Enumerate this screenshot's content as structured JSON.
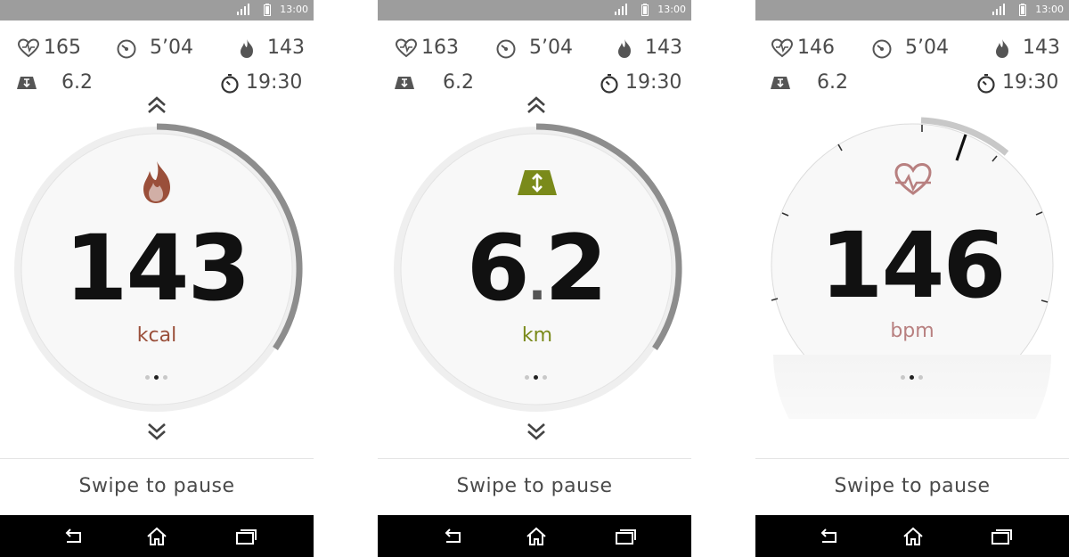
{
  "status_bar": {
    "time": "13:00",
    "signal_icon": "signal-icon",
    "battery_icon": "battery-icon"
  },
  "stat_icons": [
    "heart-rate-icon",
    "pace-gauge-icon",
    "calories-flame-icon",
    "distance-icon",
    "timer-icon"
  ],
  "colors": {
    "calories": "#9a4f3a",
    "distance": "#7a8a1a",
    "heart": "#b88080",
    "status_bar": "#9d9d9d",
    "nav_bar": "#000000"
  },
  "screens": [
    {
      "stats": {
        "heart_rate": "165",
        "pace": "5’04",
        "calories": "143",
        "distance": "6.2",
        "time": "19:30"
      },
      "main": {
        "value": "143",
        "unit": "kcal",
        "icon": "flame-icon"
      },
      "swipe_label": "Swipe to pause"
    },
    {
      "stats": {
        "heart_rate": "163",
        "pace": "5’04",
        "calories": "143",
        "distance": "6.2",
        "time": "19:30"
      },
      "main": {
        "value_int": "6",
        "value_sep": ".",
        "value_frac": "2",
        "unit": "km",
        "icon": "distance-arrows-icon"
      },
      "swipe_label": "Swipe to pause"
    },
    {
      "stats": {
        "heart_rate": "146",
        "pace": "5’04",
        "calories": "143",
        "distance": "6.2",
        "time": "19:30"
      },
      "main": {
        "value": "146",
        "unit": "bpm",
        "icon": "heart-pulse-icon"
      },
      "swipe_label": "Swipe to pause"
    }
  ],
  "nav_icons": [
    "back-icon",
    "home-icon",
    "recent-apps-icon"
  ]
}
